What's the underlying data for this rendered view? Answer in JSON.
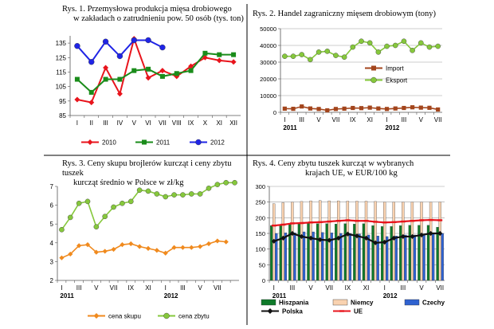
{
  "chart_data": [
    {
      "type": "line",
      "title": "Rys. 1. Przemysłowa produkcja mięsa drobiowego",
      "subtitle": "w zakładach o zatrudnieniu pow. 50 osób (tys. ton)",
      "categories": [
        "I",
        "II",
        "III",
        "IV",
        "V",
        "VI",
        "VII",
        "VIII",
        "IX",
        "X",
        "XI",
        "XII"
      ],
      "ylim": [
        85,
        140
      ],
      "yticks": [
        85,
        95,
        105,
        115,
        125,
        135
      ],
      "series": [
        {
          "name": "2010",
          "color": "#e8141c",
          "marker": "diamond",
          "values": [
            96,
            94,
            118,
            100,
            138,
            111,
            116,
            112,
            119,
            125,
            123,
            122
          ]
        },
        {
          "name": "2011",
          "color": "#1a8c1a",
          "marker": "square",
          "values": [
            110,
            101,
            110,
            110,
            116,
            117,
            112,
            114,
            116,
            128,
            127,
            127
          ]
        },
        {
          "name": "2012",
          "color": "#1f24e6",
          "marker": "circle",
          "values": [
            133,
            122,
            136,
            126,
            137,
            137,
            132,
            null,
            null,
            null,
            null,
            null
          ]
        }
      ],
      "legend": "bottom"
    },
    {
      "type": "line",
      "title": "Rys. 2. Handel zagraniczny mięsem drobiowym (tony)",
      "categories": [
        "I",
        "",
        "III",
        "",
        "V",
        "",
        "VII",
        "",
        "IX",
        "",
        "XI",
        "",
        "I",
        "",
        "III",
        "",
        "V",
        "",
        "VII"
      ],
      "ticklabels": [
        "I",
        "III",
        "V",
        "VII",
        "IX",
        "XI",
        "I",
        "III",
        "V",
        "VII"
      ],
      "year_labels": [
        "2011",
        "2012"
      ],
      "ylim": [
        0,
        50000
      ],
      "yticks": [
        0,
        10000,
        20000,
        30000,
        40000,
        50000
      ],
      "series": [
        {
          "name": "Import",
          "color": "#a3451c",
          "marker": "square",
          "values": [
            2200,
            2100,
            3500,
            2300,
            2000,
            1200,
            2000,
            2200,
            2600,
            2500,
            2800,
            2300,
            2000,
            2300,
            2600,
            3000,
            2800,
            2700,
            1700
          ]
        },
        {
          "name": "Eksport",
          "color": "#86c83c",
          "marker": "circle",
          "values": [
            33500,
            33500,
            34500,
            31500,
            36000,
            36500,
            34000,
            33000,
            39000,
            42500,
            41500,
            36000,
            39500,
            40000,
            42500,
            37000,
            41500,
            39000,
            39500
          ]
        }
      ],
      "legend": "middle-left"
    },
    {
      "type": "line",
      "title": "Rys. 3. Ceny skupu brojlerów kurcząt i ceny zbytu tuszek",
      "subtitle": "kurcząt średnio w Polsce w zł/kg",
      "categories": [
        "I",
        "",
        "III",
        "",
        "V",
        "",
        "VII",
        "",
        "IX",
        "",
        "XI",
        "",
        "I",
        "",
        "III",
        "",
        "V",
        "",
        "VII",
        "",
        ""
      ],
      "ticklabels": [
        "I",
        "III",
        "V",
        "VII",
        "IX",
        "XI",
        "I",
        "III",
        "V",
        "VII"
      ],
      "year_labels": [
        "2011",
        "2012"
      ],
      "ylim": [
        2,
        7
      ],
      "yticks": [
        2,
        3,
        4,
        5,
        6,
        7
      ],
      "series": [
        {
          "name": "cena skupu",
          "color": "#f08a1e",
          "marker": "diamond",
          "values": [
            3.2,
            3.4,
            3.85,
            3.9,
            3.5,
            3.55,
            3.65,
            3.9,
            3.95,
            3.8,
            3.7,
            3.6,
            3.45,
            3.75,
            3.75,
            3.75,
            3.8,
            3.95,
            4.1,
            4.05,
            null
          ]
        },
        {
          "name": "cena zbytu",
          "color": "#86c83c",
          "marker": "circle",
          "values": [
            4.7,
            5.35,
            6.1,
            6.2,
            4.85,
            5.4,
            5.9,
            6.1,
            6.2,
            6.8,
            6.75,
            6.6,
            6.45,
            6.55,
            6.55,
            6.6,
            6.6,
            6.9,
            7.1,
            7.2,
            7.2
          ]
        }
      ],
      "legend": "bottom"
    },
    {
      "type": "bar",
      "title": "Rys. 4. Ceny zbytu tuszek kurcząt w wybranych",
      "subtitle": "krajach UE, w EUR/100 kg",
      "categories": [
        "I",
        "",
        "III",
        "",
        "V",
        "",
        "VII",
        "",
        "IX",
        "",
        "XI",
        "",
        "I",
        "",
        "III",
        "",
        "V",
        "",
        "VII"
      ],
      "ticklabels": [
        "I",
        "III",
        "V",
        "VII",
        "IX",
        "XI",
        "I",
        "III",
        "V",
        "VII"
      ],
      "year_labels": [
        "2011",
        "2012"
      ],
      "ylim": [
        0,
        300
      ],
      "yticks": [
        0,
        50,
        100,
        150,
        200,
        250,
        300
      ],
      "series": [
        {
          "name": "Hiszpania",
          "kind": "bar",
          "color": "#0f7a2a",
          "values": [
            175,
            178,
            180,
            182,
            182,
            181,
            181,
            180,
            181,
            180,
            181,
            175,
            172,
            172,
            175,
            176,
            176,
            176,
            170
          ]
        },
        {
          "name": "Niemcy",
          "kind": "bar",
          "color": "#f9d2b0",
          "values": [
            245,
            248,
            250,
            252,
            254,
            255,
            254,
            254,
            253,
            253,
            253,
            252,
            250,
            250,
            250,
            250,
            250,
            250,
            250
          ]
        },
        {
          "name": "Czechy",
          "kind": "bar",
          "color": "#2f62d0",
          "values": [
            150,
            152,
            152,
            155,
            155,
            153,
            152,
            150,
            150,
            148,
            145,
            142,
            140,
            142,
            145,
            145,
            147,
            148,
            150
          ]
        },
        {
          "name": "Polska",
          "kind": "line",
          "color": "#111111",
          "marker": "diamond",
          "values": [
            125,
            135,
            150,
            140,
            135,
            130,
            128,
            135,
            148,
            142,
            135,
            120,
            122,
            135,
            140,
            140,
            145,
            150,
            150
          ]
        },
        {
          "name": "UE",
          "kind": "line",
          "color": "#e8141c",
          "marker": "dash",
          "values": [
            175,
            178,
            182,
            183,
            185,
            186,
            188,
            190,
            192,
            190,
            190,
            187,
            185,
            186,
            188,
            190,
            192,
            193,
            192
          ]
        }
      ],
      "legend": "bottom"
    }
  ]
}
